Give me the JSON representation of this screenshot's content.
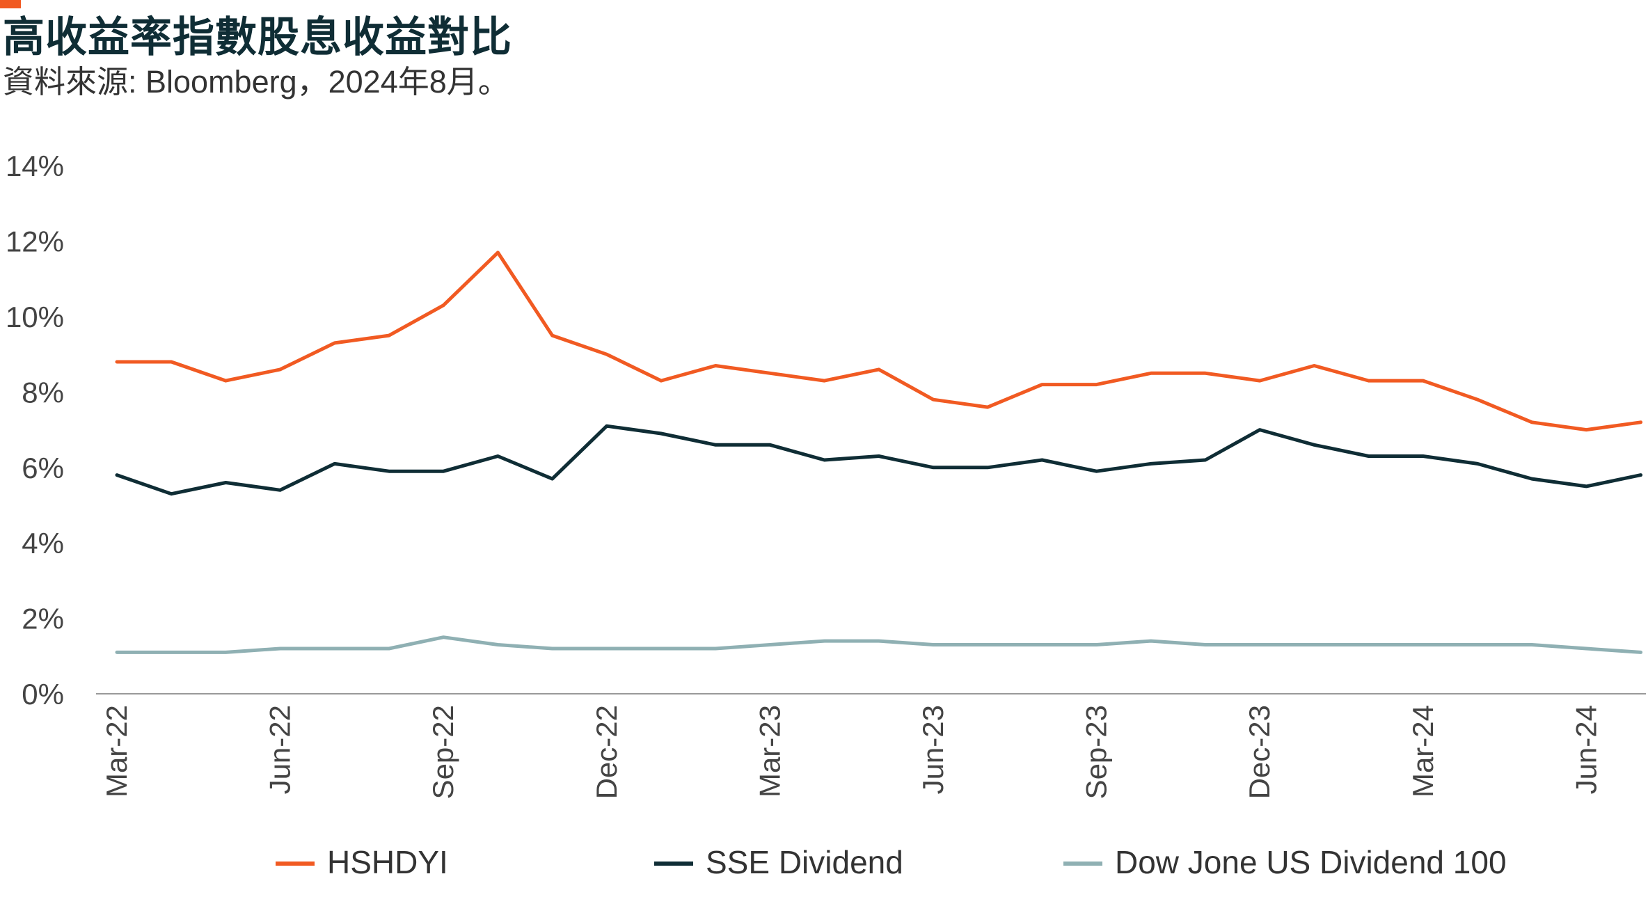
{
  "header": {
    "title": "高收益率指數股息收益對比",
    "subtitle": "資料來源: Bloomberg，2024年8月。",
    "accent_color": "#f15a22"
  },
  "chart_data": {
    "type": "line",
    "title": "高收益率指數股息收益對比",
    "subtitle": "資料來源: Bloomberg，2024年8月。",
    "xlabel": "",
    "ylabel": "",
    "ylim": [
      0,
      14
    ],
    "y_ticks": [
      "0%",
      "2%",
      "4%",
      "6%",
      "8%",
      "10%",
      "12%",
      "14%"
    ],
    "x_tick_labels": [
      "Mar-22",
      "Jun-22",
      "Sep-22",
      "Dec-22",
      "Mar-23",
      "Jun-23",
      "Sep-23",
      "Dec-23",
      "Mar-24",
      "Jun-24"
    ],
    "x": [
      "Mar-22",
      "Apr-22",
      "May-22",
      "Jun-22",
      "Jul-22",
      "Aug-22",
      "Sep-22",
      "Oct-22",
      "Nov-22",
      "Dec-22",
      "Jan-23",
      "Feb-23",
      "Mar-23",
      "Apr-23",
      "May-23",
      "Jun-23",
      "Jul-23",
      "Aug-23",
      "Sep-23",
      "Oct-23",
      "Nov-23",
      "Dec-23",
      "Jan-24",
      "Feb-24",
      "Mar-24",
      "Apr-24",
      "May-24",
      "Jun-24",
      "Jul-24"
    ],
    "grid": false,
    "legend_position": "bottom",
    "series": [
      {
        "name": "HSHDYI",
        "color": "#f15a22",
        "values": [
          8.8,
          8.8,
          8.3,
          8.6,
          9.3,
          9.5,
          10.3,
          11.7,
          9.5,
          9.0,
          8.3,
          8.7,
          8.5,
          8.3,
          8.6,
          7.8,
          7.6,
          8.2,
          8.2,
          8.5,
          8.5,
          8.3,
          8.7,
          8.3,
          8.3,
          7.8,
          7.2,
          7.0,
          7.2
        ]
      },
      {
        "name": "SSE Dividend",
        "color": "#0f2d35",
        "values": [
          5.8,
          5.3,
          5.6,
          5.4,
          6.1,
          5.9,
          5.9,
          6.3,
          5.7,
          7.1,
          6.9,
          6.6,
          6.6,
          6.2,
          6.3,
          6.0,
          6.0,
          6.2,
          5.9,
          6.1,
          6.2,
          7.0,
          6.6,
          6.3,
          6.3,
          6.1,
          5.7,
          5.5,
          5.8
        ]
      },
      {
        "name": "Dow Jone US Dividend 100",
        "color": "#8fb0b3",
        "values": [
          1.1,
          1.1,
          1.1,
          1.2,
          1.2,
          1.2,
          1.5,
          1.3,
          1.2,
          1.2,
          1.2,
          1.2,
          1.3,
          1.4,
          1.4,
          1.3,
          1.3,
          1.3,
          1.3,
          1.4,
          1.3,
          1.3,
          1.3,
          1.3,
          1.3,
          1.3,
          1.3,
          1.2,
          1.1
        ]
      }
    ]
  }
}
